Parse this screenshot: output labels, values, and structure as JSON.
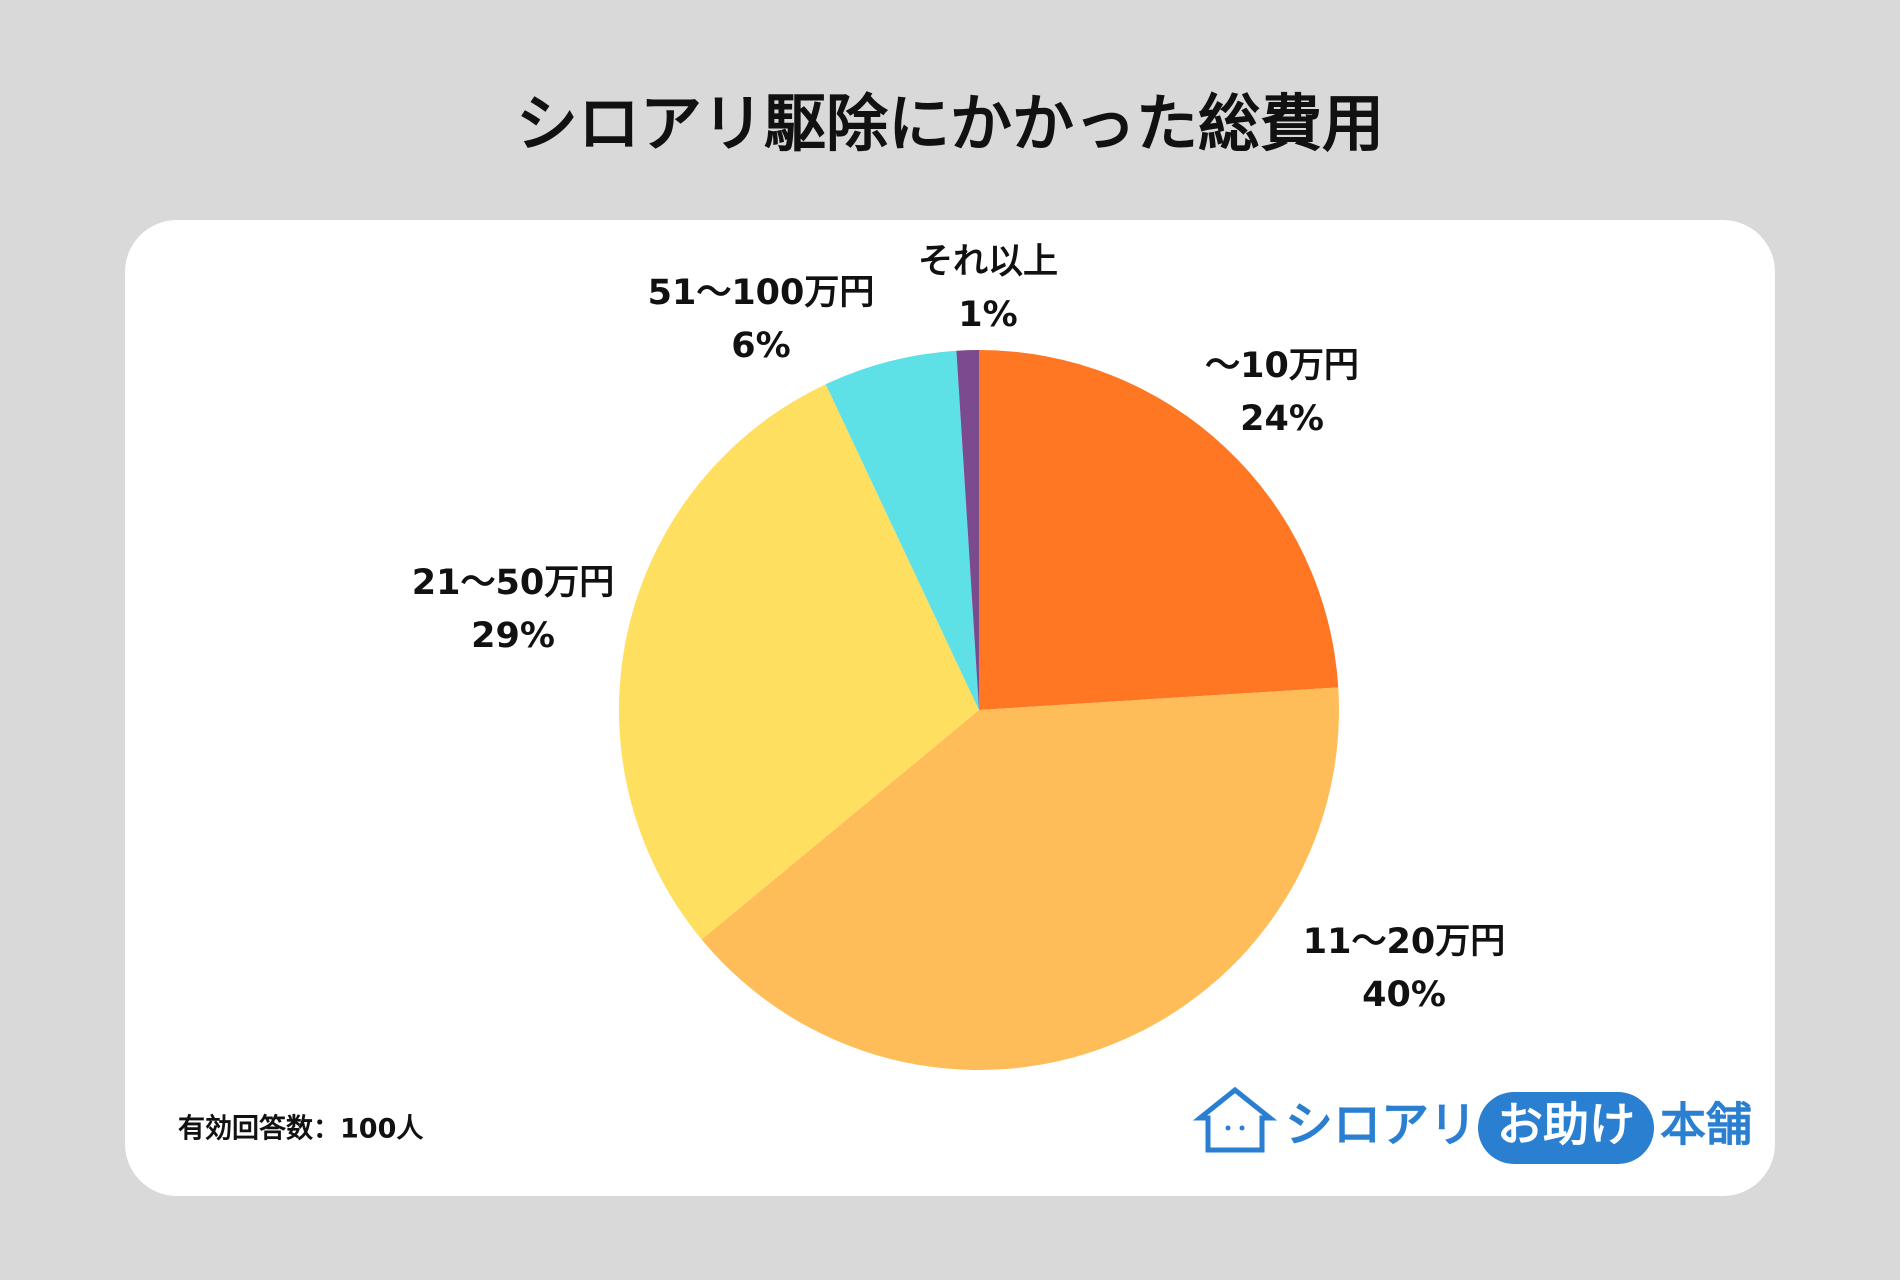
{
  "chart_data": {
    "type": "pie",
    "title": "シロアリ駆除にかかった総費用",
    "categories": [
      "〜10万円",
      "11〜20万円",
      "21〜50万円",
      "51〜100万円",
      "それ以上"
    ],
    "values": [
      24,
      40,
      29,
      6,
      1
    ],
    "value_labels": [
      "24%",
      "40%",
      "29%",
      "6%",
      "1%"
    ],
    "colors": [
      "#ff7722",
      "#ffbd5a",
      "#ffdf5f",
      "#5de0e6",
      "#7b4a8f"
    ],
    "note": "有効回答数：100人",
    "logo": {
      "part1": "シロアリ",
      "part2": "お助け",
      "part3": "本舗"
    }
  }
}
